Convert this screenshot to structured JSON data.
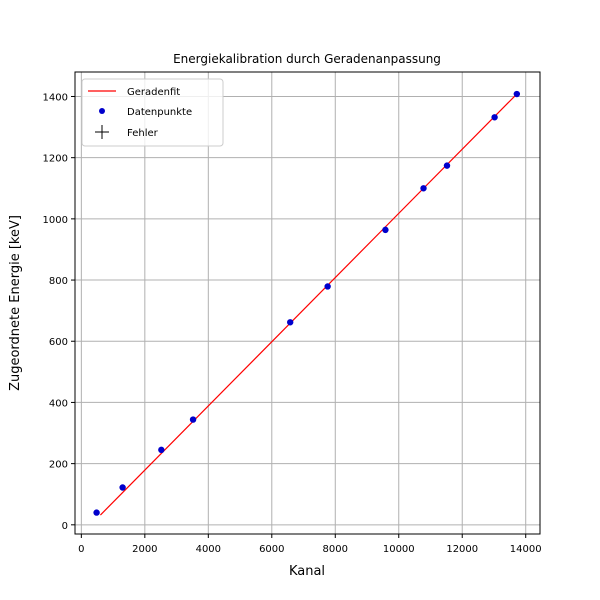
{
  "chart_data": {
    "type": "scatter",
    "title": "Energiekalibration durch Geradenanpassung",
    "xlabel": "Kanal",
    "ylabel": "Zugeordnete Energie [keV]",
    "xlim": [
      -200,
      14450
    ],
    "ylim": [
      -30,
      1480
    ],
    "xticks": [
      0,
      2000,
      4000,
      6000,
      8000,
      10000,
      12000,
      14000
    ],
    "yticks": [
      0,
      200,
      400,
      600,
      800,
      1000,
      1200,
      1400
    ],
    "grid": true,
    "legend_position": "top-left",
    "legend": [
      {
        "label": "Geradenfit",
        "marker": "line"
      },
      {
        "label": "Datenpunkte",
        "marker": "dot"
      },
      {
        "label": "Fehler",
        "marker": "plus"
      }
    ],
    "fit_line": {
      "name": "Geradenfit",
      "x": [
        600,
        13700
      ],
      "y": [
        32,
        1406
      ],
      "color": "#ff0000"
    },
    "series": [
      {
        "name": "Datenpunkte",
        "color": "#0000cc",
        "x": [
          480,
          1300,
          2520,
          3520,
          6580,
          7760,
          9580,
          10780,
          11520,
          13020,
          13720
        ],
        "y": [
          40,
          122,
          245,
          344,
          662,
          779,
          964,
          1100,
          1174,
          1332,
          1408
        ]
      }
    ]
  }
}
